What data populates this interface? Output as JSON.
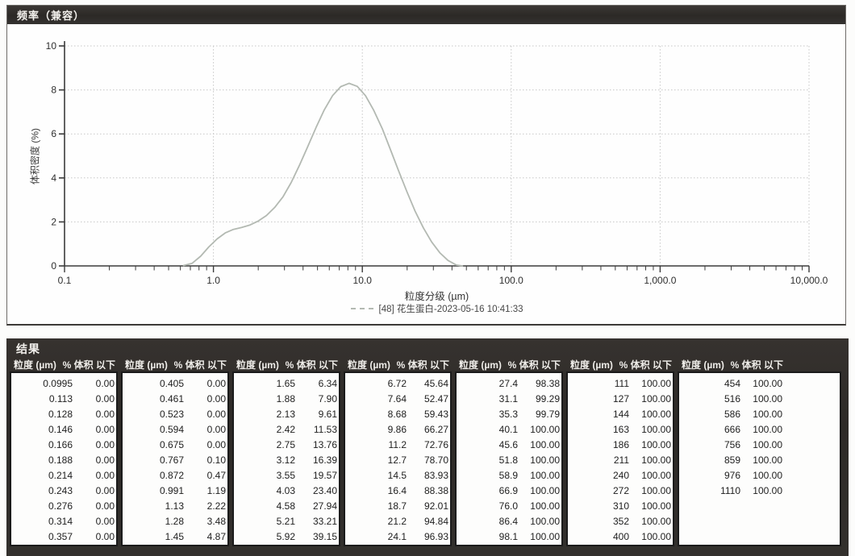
{
  "chart_data": [
    {
      "type": "line",
      "title": "频率（兼容）",
      "xlabel": "粒度分级 (µm)",
      "ylabel": "体积密度 (%)",
      "x_scale": "log",
      "xlim": [
        0.1,
        10000
      ],
      "ylim": [
        0,
        10
      ],
      "x_tick_values": [
        0.1,
        1,
        10,
        100,
        1000,
        10000
      ],
      "x_tick_labels": [
        "0.1",
        "1.0",
        "10.0",
        "100.0",
        "1,000.0",
        "10,000.0"
      ],
      "y_tick_values": [
        0,
        2,
        4,
        6,
        8,
        10
      ],
      "grid": true,
      "legend_position": "bottom",
      "colors": {
        "curve": "#b3b9b2",
        "grid": "#c6c6c6",
        "axis": "#3b3b3b",
        "panel_header_bg": "#2e2b28",
        "tick_text": "#2e2e2e"
      },
      "series": [
        {
          "name": "[48] 花生蛋白-2023-05-16 10:41:33",
          "color": "#b3b9b2",
          "points": [
            [
              0.63,
              0.02
            ],
            [
              0.72,
              0.12
            ],
            [
              0.82,
              0.44
            ],
            [
              0.93,
              0.86
            ],
            [
              1.06,
              1.23
            ],
            [
              1.2,
              1.5
            ],
            [
              1.36,
              1.66
            ],
            [
              1.55,
              1.75
            ],
            [
              1.76,
              1.86
            ],
            [
              2.0,
              2.04
            ],
            [
              2.27,
              2.29
            ],
            [
              2.58,
              2.66
            ],
            [
              2.93,
              3.14
            ],
            [
              3.33,
              3.79
            ],
            [
              3.78,
              4.57
            ],
            [
              4.3,
              5.42
            ],
            [
              4.89,
              6.29
            ],
            [
              5.55,
              7.09
            ],
            [
              6.31,
              7.74
            ],
            [
              7.17,
              8.15
            ],
            [
              8.14,
              8.3
            ],
            [
              9.25,
              8.16
            ],
            [
              10.5,
              7.74
            ],
            [
              11.9,
              7.09
            ],
            [
              13.6,
              6.24
            ],
            [
              15.4,
              5.31
            ],
            [
              17.5,
              4.33
            ],
            [
              19.9,
              3.38
            ],
            [
              22.6,
              2.49
            ],
            [
              25.7,
              1.73
            ],
            [
              29.2,
              1.09
            ],
            [
              33.1,
              0.6
            ],
            [
              37.6,
              0.25
            ],
            [
              42.8,
              0.04
            ],
            [
              47,
              0
            ]
          ]
        }
      ]
    },
    {
      "type": "table",
      "title": "结果",
      "column_pair_headers": [
        "粒度 (µm)",
        "% 体积 以下"
      ],
      "groups": [
        [
          [
            "0.0995",
            "0.00"
          ],
          [
            "0.113",
            "0.00"
          ],
          [
            "0.128",
            "0.00"
          ],
          [
            "0.146",
            "0.00"
          ],
          [
            "0.166",
            "0.00"
          ],
          [
            "0.188",
            "0.00"
          ],
          [
            "0.214",
            "0.00"
          ],
          [
            "0.243",
            "0.00"
          ],
          [
            "0.276",
            "0.00"
          ],
          [
            "0.314",
            "0.00"
          ],
          [
            "0.357",
            "0.00"
          ]
        ],
        [
          [
            "0.405",
            "0.00"
          ],
          [
            "0.461",
            "0.00"
          ],
          [
            "0.523",
            "0.00"
          ],
          [
            "0.594",
            "0.00"
          ],
          [
            "0.675",
            "0.00"
          ],
          [
            "0.767",
            "0.10"
          ],
          [
            "0.872",
            "0.47"
          ],
          [
            "0.991",
            "1.19"
          ],
          [
            "1.13",
            "2.22"
          ],
          [
            "1.28",
            "3.48"
          ],
          [
            "1.45",
            "4.87"
          ]
        ],
        [
          [
            "1.65",
            "6.34"
          ],
          [
            "1.88",
            "7.90"
          ],
          [
            "2.13",
            "9.61"
          ],
          [
            "2.42",
            "11.53"
          ],
          [
            "2.75",
            "13.76"
          ],
          [
            "3.12",
            "16.39"
          ],
          [
            "3.55",
            "19.57"
          ],
          [
            "4.03",
            "23.40"
          ],
          [
            "4.58",
            "27.94"
          ],
          [
            "5.21",
            "33.21"
          ],
          [
            "5.92",
            "39.15"
          ]
        ],
        [
          [
            "6.72",
            "45.64"
          ],
          [
            "7.64",
            "52.47"
          ],
          [
            "8.68",
            "59.43"
          ],
          [
            "9.86",
            "66.27"
          ],
          [
            "11.2",
            "72.76"
          ],
          [
            "12.7",
            "78.70"
          ],
          [
            "14.5",
            "83.93"
          ],
          [
            "16.4",
            "88.38"
          ],
          [
            "18.7",
            "92.01"
          ],
          [
            "21.2",
            "94.84"
          ],
          [
            "24.1",
            "96.93"
          ]
        ],
        [
          [
            "27.4",
            "98.38"
          ],
          [
            "31.1",
            "99.29"
          ],
          [
            "35.3",
            "99.79"
          ],
          [
            "40.1",
            "100.00"
          ],
          [
            "45.6",
            "100.00"
          ],
          [
            "51.8",
            "100.00"
          ],
          [
            "58.9",
            "100.00"
          ],
          [
            "66.9",
            "100.00"
          ],
          [
            "76.0",
            "100.00"
          ],
          [
            "86.4",
            "100.00"
          ],
          [
            "98.1",
            "100.00"
          ]
        ],
        [
          [
            "111",
            "100.00"
          ],
          [
            "127",
            "100.00"
          ],
          [
            "144",
            "100.00"
          ],
          [
            "163",
            "100.00"
          ],
          [
            "186",
            "100.00"
          ],
          [
            "211",
            "100.00"
          ],
          [
            "240",
            "100.00"
          ],
          [
            "272",
            "100.00"
          ],
          [
            "310",
            "100.00"
          ],
          [
            "352",
            "100.00"
          ],
          [
            "400",
            "100.00"
          ]
        ],
        [
          [
            "454",
            "100.00"
          ],
          [
            "516",
            "100.00"
          ],
          [
            "586",
            "100.00"
          ],
          [
            "666",
            "100.00"
          ],
          [
            "756",
            "100.00"
          ],
          [
            "859",
            "100.00"
          ],
          [
            "976",
            "100.00"
          ],
          [
            "1110",
            "100.00"
          ]
        ]
      ]
    }
  ]
}
